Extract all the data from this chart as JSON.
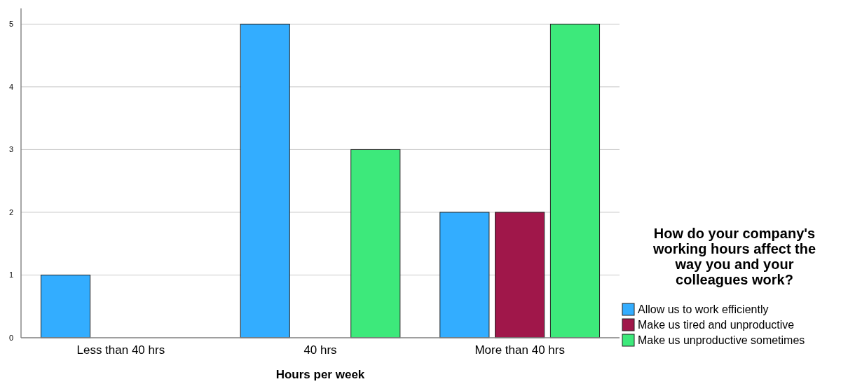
{
  "chart_data": {
    "type": "bar",
    "xlabel": "Hours per week",
    "legend_title": "How do your company's working hours affect the way you and your colleagues work?",
    "categories": [
      "Less than 40 hrs",
      "40 hrs",
      "More than 40 hrs"
    ],
    "series": [
      {
        "name": "Allow us to work efficiently",
        "color": "#33adff",
        "values": [
          1,
          5,
          2
        ]
      },
      {
        "name": "Make us tired and unproductive",
        "color": "#a0174a",
        "values": [
          0,
          0,
          2
        ]
      },
      {
        "name": "Make us unproductive sometimes",
        "color": "#3de97b",
        "values": [
          0,
          3,
          5
        ]
      }
    ],
    "ylim": [
      0,
      5.25
    ],
    "yticks": [
      0,
      1,
      2,
      3,
      4,
      5
    ],
    "grid": "y",
    "legend": "right"
  }
}
